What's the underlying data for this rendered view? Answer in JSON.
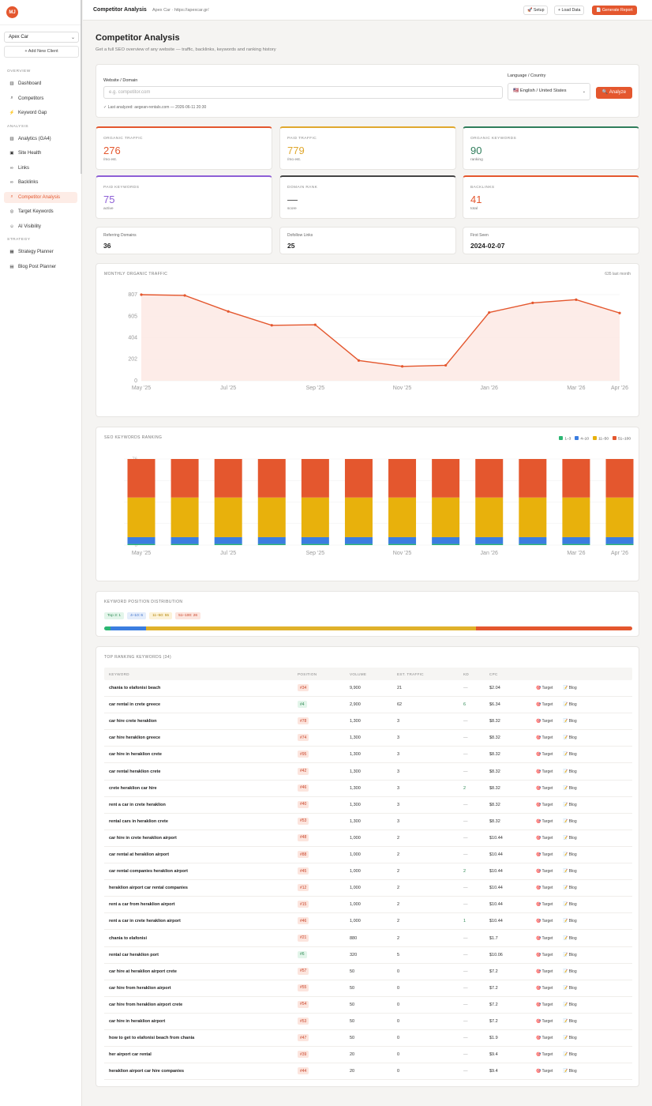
{
  "app": {
    "logo": "MJ"
  },
  "sidebar": {
    "client": "Apex Car",
    "add_client": "+ Add New Client",
    "sections": [
      {
        "label": "OVERVIEW",
        "items": [
          {
            "icon": "dashboard-icon",
            "glyph": "▥",
            "label": "Dashboard"
          },
          {
            "icon": "search-icon",
            "glyph": "⌕",
            "label": "Competitors"
          },
          {
            "icon": "lightning-icon",
            "glyph": "⚡",
            "label": "Keyword Gap"
          }
        ]
      },
      {
        "label": "ANALYSIS",
        "items": [
          {
            "icon": "analytics-icon",
            "glyph": "▥",
            "label": "Analytics (GA4)"
          },
          {
            "icon": "hospital-icon",
            "glyph": "▣",
            "label": "Site Health"
          },
          {
            "icon": "link-icon",
            "glyph": "∞",
            "label": "Links"
          },
          {
            "icon": "link-icon",
            "glyph": "∞",
            "label": "Backlinks"
          },
          {
            "icon": "search-icon",
            "glyph": "⌕",
            "label": "Competitor Analysis",
            "active": true
          },
          {
            "icon": "target-icon",
            "glyph": "◎",
            "label": "Target Keywords"
          },
          {
            "icon": "robot-icon",
            "glyph": "☺",
            "label": "AI Visibility"
          }
        ]
      },
      {
        "label": "STRATEGY",
        "items": [
          {
            "icon": "map-icon",
            "glyph": "▦",
            "label": "Strategy Planner"
          },
          {
            "icon": "calendar-icon",
            "glyph": "▤",
            "label": "Blog Post Planner"
          }
        ]
      }
    ]
  },
  "topbar": {
    "title": "Competitor Analysis",
    "subtitle": "Apex Car · https://apexcar.gr/",
    "setup": "🚀 Setup",
    "load": "+ Load Data",
    "report": "📄 Generate Report"
  },
  "page": {
    "title": "Competitor Analysis",
    "subtitle": "Get a full SEO overview of any website — traffic, backlinks, keywords and ranking history"
  },
  "search": {
    "domain_label": "Website / Domain",
    "domain_placeholder": "e.g. competitor.com",
    "last_analyzed": "✓ Last analyzed: aegean-rentals.com — 2026-06-11 20:30",
    "lang_label": "Language / Country",
    "lang_value": "🇺🇸 English / United States",
    "analyze": "🔍 Analyze"
  },
  "stats": [
    {
      "label": "ORGANIC TRAFFIC",
      "value": "276",
      "unit": "/mo est.",
      "color": "#e4572e"
    },
    {
      "label": "PAID TRAFFIC",
      "value": "779",
      "unit": "/mo est.",
      "color": "#e0a82e"
    },
    {
      "label": "ORGANIC KEYWORDS",
      "value": "90",
      "unit": "ranking",
      "color": "#2f7d5b"
    },
    {
      "label": "PAID KEYWORDS",
      "value": "75",
      "unit": "active",
      "color": "#8e5fd6"
    },
    {
      "label": "DOMAIN RANK",
      "value": "—",
      "unit": "score",
      "color": "#444444"
    },
    {
      "label": "BACKLINKS",
      "value": "41",
      "unit": "total",
      "color": "#e4572e"
    }
  ],
  "mini": [
    {
      "label": "Referring Domains",
      "value": "36"
    },
    {
      "label": "Dofollow Links",
      "value": "25"
    },
    {
      "label": "First Seen",
      "value": "2024-02-07"
    }
  ],
  "traffic_chart": {
    "title": "MONTHLY ORGANIC TRAFFIC",
    "right_label": "635 last month",
    "color": "#e4572e"
  },
  "ranking_chart": {
    "title": "SEO KEYWORDS RANKING",
    "legend": [
      {
        "label": "1–3",
        "color": "#2bb673"
      },
      {
        "label": "4–10",
        "color": "#3b7de0"
      },
      {
        "label": "11–50",
        "color": "#e8b10c"
      },
      {
        "label": "51–100",
        "color": "#e4572e"
      }
    ]
  },
  "chart_data": [
    {
      "type": "area",
      "x": [
        "May '25",
        "Jun '25",
        "Jul '25",
        "Aug '25",
        "Sep '25",
        "Oct '25",
        "Nov '25",
        "Dec '25",
        "Jan '26",
        "Feb '26",
        "Mar '26",
        "Apr '26"
      ],
      "x_tick_labels": [
        "May '25",
        "Jul '25",
        "Sep '25",
        "Nov '25",
        "Jan '26",
        "Mar '26",
        "Apr '26"
      ],
      "values": [
        807,
        800,
        650,
        520,
        525,
        190,
        135,
        145,
        640,
        730,
        760,
        635
      ],
      "y_ticks": [
        0,
        202,
        404,
        605,
        807
      ],
      "ylim": [
        0,
        807
      ]
    },
    {
      "type": "bar",
      "stacked": true,
      "categories": [
        "May '25",
        "Jun '25",
        "Jul '25",
        "Aug '25",
        "Sep '25",
        "Oct '25",
        "Nov '25",
        "Dec '25",
        "Jan '26",
        "Feb '26",
        "Mar '26",
        "Apr '26"
      ],
      "x_tick_labels": [
        "May '25",
        "Jul '25",
        "Sep '25",
        "Nov '25",
        "Jan '26",
        "Mar '26",
        "Apr '26"
      ],
      "series": [
        {
          "name": "1–3",
          "values": [
            1,
            1,
            1,
            1,
            1,
            1,
            1,
            1,
            1,
            1,
            1,
            1
          ]
        },
        {
          "name": "4–10",
          "values": [
            6,
            6,
            6,
            6,
            6,
            6,
            6,
            6,
            6,
            6,
            6,
            6
          ]
        },
        {
          "name": "11–50",
          "values": [
            35,
            35,
            35,
            35,
            35,
            35,
            35,
            35,
            35,
            35,
            35,
            35
          ]
        },
        {
          "name": "51–100",
          "values": [
            34,
            34,
            34,
            34,
            34,
            34,
            34,
            34,
            34,
            34,
            34,
            34
          ]
        }
      ],
      "y_ticks": [
        0,
        76
      ],
      "ylim": [
        0,
        76
      ]
    }
  ],
  "distribution": {
    "title": "KEYWORD POSITION DISTRIBUTION",
    "badges": [
      {
        "label": "Top 3: 1",
        "bg": "#e3f5ea",
        "fg": "#2f8a55"
      },
      {
        "label": "4–10: 6",
        "bg": "#e4edfb",
        "fg": "#3b6fc8"
      },
      {
        "label": "11–50: 55",
        "bg": "#fcf2d8",
        "fg": "#b5870a"
      },
      {
        "label": "51–100: 26",
        "bg": "#fce5de",
        "fg": "#c9452b"
      }
    ],
    "segments": [
      {
        "value": 1,
        "color": "#2bb673"
      },
      {
        "value": 6,
        "color": "#3b7de0"
      },
      {
        "value": 55,
        "color": "#e0b12a"
      },
      {
        "value": 26,
        "color": "#e4572e"
      }
    ]
  },
  "keywords_table": {
    "title": "TOP RANKING KEYWORDS (34)",
    "columns": [
      "KEYWORD",
      "POSITION",
      "VOLUME",
      "EST. TRAFFIC",
      "KD",
      "CPC"
    ],
    "target_label": "🎯 Target",
    "blog_label": "📝 Blog",
    "rows": [
      {
        "keyword": "chania to elafonisi beach",
        "position": "#34",
        "volume": "9,900",
        "traffic": "21",
        "kd": "—",
        "cpc": "$2.04"
      },
      {
        "keyword": "car rental in crete greece",
        "position": "#4",
        "volume": "2,900",
        "traffic": "62",
        "kd": "6",
        "cpc": "$6.34"
      },
      {
        "keyword": "car hire crete heraklion",
        "position": "#78",
        "volume": "1,300",
        "traffic": "3",
        "kd": "—",
        "cpc": "$8.32"
      },
      {
        "keyword": "car hire heraklion greece",
        "position": "#74",
        "volume": "1,300",
        "traffic": "3",
        "kd": "—",
        "cpc": "$8.32"
      },
      {
        "keyword": "car hire in heraklion crete",
        "position": "#95",
        "volume": "1,300",
        "traffic": "3",
        "kd": "—",
        "cpc": "$8.32"
      },
      {
        "keyword": "car rental heraklion crete",
        "position": "#42",
        "volume": "1,300",
        "traffic": "3",
        "kd": "—",
        "cpc": "$8.32"
      },
      {
        "keyword": "crete heraklion car hire",
        "position": "#46",
        "volume": "1,300",
        "traffic": "3",
        "kd": "2",
        "cpc": "$8.32"
      },
      {
        "keyword": "rent a car in crete heraklion",
        "position": "#40",
        "volume": "1,300",
        "traffic": "3",
        "kd": "—",
        "cpc": "$8.32"
      },
      {
        "keyword": "rental cars in heraklion crete",
        "position": "#53",
        "volume": "1,300",
        "traffic": "3",
        "kd": "—",
        "cpc": "$8.32"
      },
      {
        "keyword": "car hire in crete heraklion airport",
        "position": "#48",
        "volume": "1,000",
        "traffic": "2",
        "kd": "—",
        "cpc": "$10.44"
      },
      {
        "keyword": "car rental at heraklion airport",
        "position": "#88",
        "volume": "1,000",
        "traffic": "2",
        "kd": "—",
        "cpc": "$10.44"
      },
      {
        "keyword": "car rental companies heraklion airport",
        "position": "#45",
        "volume": "1,000",
        "traffic": "2",
        "kd": "2",
        "cpc": "$10.44"
      },
      {
        "keyword": "heraklion airport car rental companies",
        "position": "#12",
        "volume": "1,000",
        "traffic": "2",
        "kd": "—",
        "cpc": "$10.44"
      },
      {
        "keyword": "rent a car from heraklion airport",
        "position": "#15",
        "volume": "1,000",
        "traffic": "2",
        "kd": "—",
        "cpc": "$10.44"
      },
      {
        "keyword": "rent a car in crete heraklion airport",
        "position": "#46",
        "volume": "1,000",
        "traffic": "2",
        "kd": "1",
        "cpc": "$10.44"
      },
      {
        "keyword": "chania to elafonisi",
        "position": "#21",
        "volume": "880",
        "traffic": "2",
        "kd": "—",
        "cpc": "$1.7"
      },
      {
        "keyword": "rental car heraklion port",
        "position": "#6",
        "volume": "320",
        "traffic": "5",
        "kd": "—",
        "cpc": "$10.06"
      },
      {
        "keyword": "car hire at heraklion airport crete",
        "position": "#57",
        "volume": "50",
        "traffic": "0",
        "kd": "—",
        "cpc": "$7.2"
      },
      {
        "keyword": "car hire from heraklion airport",
        "position": "#55",
        "volume": "50",
        "traffic": "0",
        "kd": "—",
        "cpc": "$7.2"
      },
      {
        "keyword": "car hire from heraklion airport crete",
        "position": "#54",
        "volume": "50",
        "traffic": "0",
        "kd": "—",
        "cpc": "$7.2"
      },
      {
        "keyword": "car hire in heraklion airport",
        "position": "#53",
        "volume": "50",
        "traffic": "0",
        "kd": "—",
        "cpc": "$7.2"
      },
      {
        "keyword": "how to get to elafonisi beach from chania",
        "position": "#47",
        "volume": "50",
        "traffic": "0",
        "kd": "—",
        "cpc": "$1.9"
      },
      {
        "keyword": "her airport car rental",
        "position": "#39",
        "volume": "20",
        "traffic": "0",
        "kd": "—",
        "cpc": "$9.4"
      },
      {
        "keyword": "heraklion airport car hire companies",
        "position": "#44",
        "volume": "20",
        "traffic": "0",
        "kd": "—",
        "cpc": "$9.4"
      }
    ]
  }
}
